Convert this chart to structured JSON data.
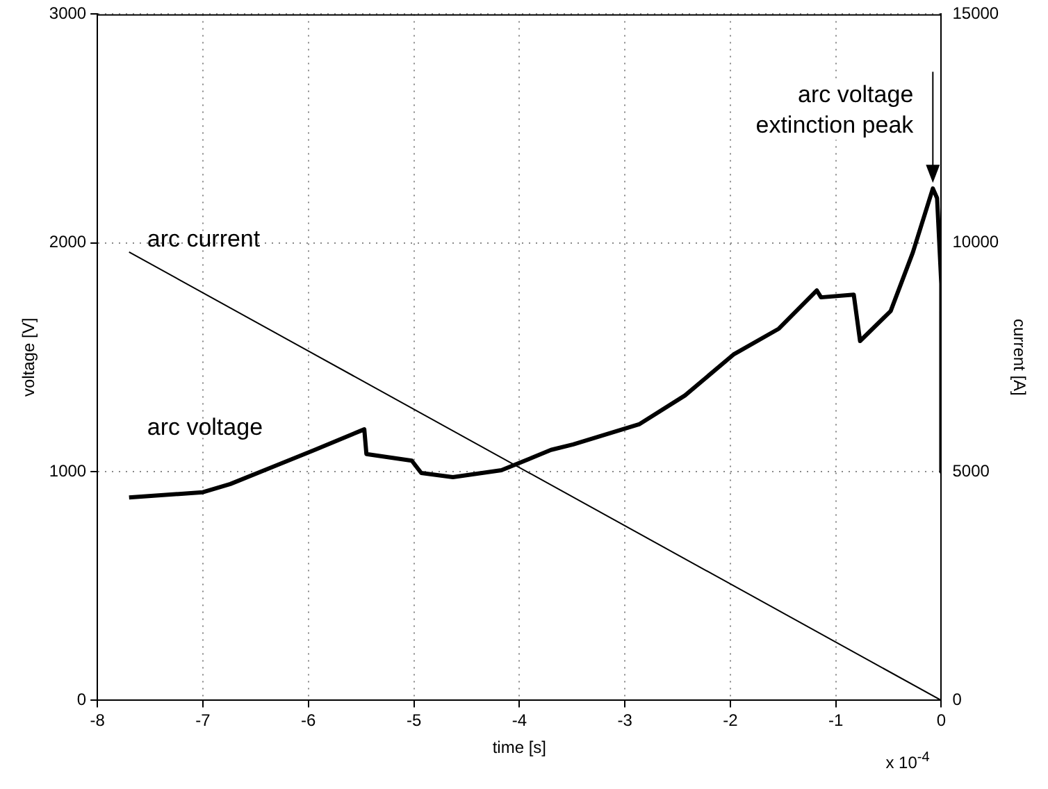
{
  "chart_data": {
    "type": "line",
    "xlabel": "time [s]",
    "ylabel": "voltage [V]",
    "y2label": "current [A]",
    "xlim": [
      -8,
      0
    ],
    "xticks": [
      -8,
      -7,
      -6,
      -5,
      -4,
      -3,
      -2,
      -1,
      0
    ],
    "ylim": [
      0,
      3000
    ],
    "yticks": [
      0,
      1000,
      2000,
      3000
    ],
    "y2lim": [
      0,
      15000
    ],
    "y2ticks": [
      0,
      5000,
      10000,
      15000
    ],
    "grid": true,
    "legend": false,
    "marker": "none",
    "line_style": "solid",
    "series": [
      {
        "name": "arc current",
        "color": "#000000",
        "axis": "y2",
        "x": [
          -7.7,
          0
        ],
        "values": [
          9800,
          0
        ]
      },
      {
        "name": "arc voltage",
        "color": "#000000",
        "axis": "y",
        "x": [
          -7.7,
          -7.0,
          -6.74,
          -6.29,
          -5.94,
          -5.47,
          -5.45,
          -5.02,
          -4.93,
          -4.63,
          -4.17,
          -3.7,
          -3.49,
          -2.86,
          -2.43,
          -1.97,
          -1.54,
          -1.18,
          -1.14,
          -0.83,
          -0.77,
          -0.48,
          -0.27,
          -0.08,
          -0.04,
          0,
          0
        ],
        "values": [
          887,
          910,
          946,
          1030,
          1095,
          1185,
          1077,
          1048,
          994,
          976,
          1006,
          1095,
          1119,
          1208,
          1333,
          1512,
          1625,
          1792,
          1762,
          1774,
          1571,
          1702,
          1958,
          2238,
          2196,
          1821,
          1000
        ]
      }
    ],
    "annotations": [
      {
        "text": "arc voltage extinction peak",
        "x": -0.08,
        "y": 2238
      },
      "x 10$^{-4}$"
    ]
  }
}
